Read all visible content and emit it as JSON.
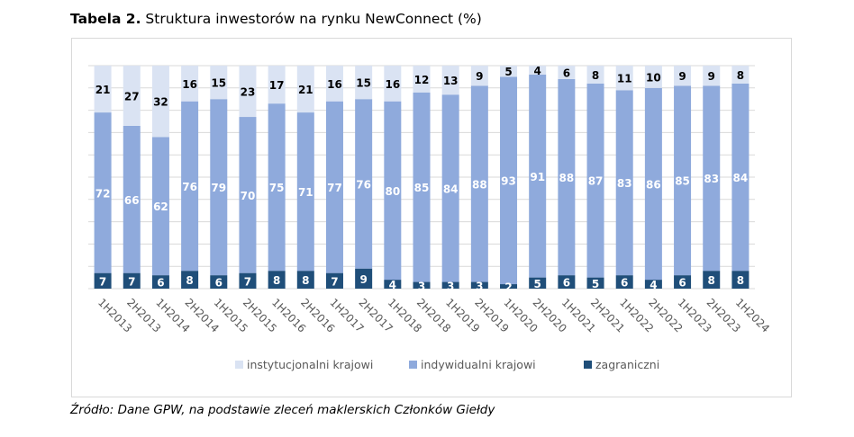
{
  "title": {
    "bold": "Tabela 2.",
    "text": "Struktura inwestorów na rynku NewConnect (%)"
  },
  "source": "Źródło: Dane GPW, na podstawie zleceń maklerskich Członków Giełdy",
  "chart_data": {
    "type": "bar",
    "stacked": true,
    "categories": [
      "1H2013",
      "2H2013",
      "1H2014",
      "2H2014",
      "1H2015",
      "2H2015",
      "1H2016",
      "2H2016",
      "1H2017",
      "2H2017",
      "1H2018",
      "2H2018",
      "1H2019",
      "2H2019",
      "1H2020",
      "2H2020",
      "1H2021",
      "2H2021",
      "1H2022",
      "2H2022",
      "1H2023",
      "2H2023",
      "1H2024"
    ],
    "series": [
      {
        "name": "zagraniczni",
        "color": "#1f4e79",
        "values": [
          7,
          7,
          6,
          8,
          6,
          7,
          8,
          8,
          7,
          9,
          4,
          3,
          3,
          3,
          2,
          5,
          6,
          5,
          6,
          4,
          6,
          8,
          8
        ]
      },
      {
        "name": "indywidualni krajowi",
        "color": "#8faadc",
        "values": [
          72,
          66,
          62,
          76,
          79,
          70,
          75,
          71,
          77,
          76,
          80,
          85,
          84,
          88,
          93,
          91,
          88,
          87,
          83,
          86,
          85,
          83,
          84
        ]
      },
      {
        "name": "instytucjonalni krajowi",
        "color": "#dae3f3",
        "values": [
          21,
          27,
          32,
          16,
          15,
          23,
          17,
          21,
          16,
          15,
          16,
          12,
          13,
          9,
          5,
          4,
          6,
          8,
          11,
          10,
          9,
          9,
          8
        ]
      }
    ],
    "legend_order": [
      "instytucjonalni krajowi",
      "indywidualni krajowi",
      "zagraniczni"
    ],
    "legend_position": "bottom",
    "ylim": [
      0,
      100
    ],
    "grid": true
  }
}
